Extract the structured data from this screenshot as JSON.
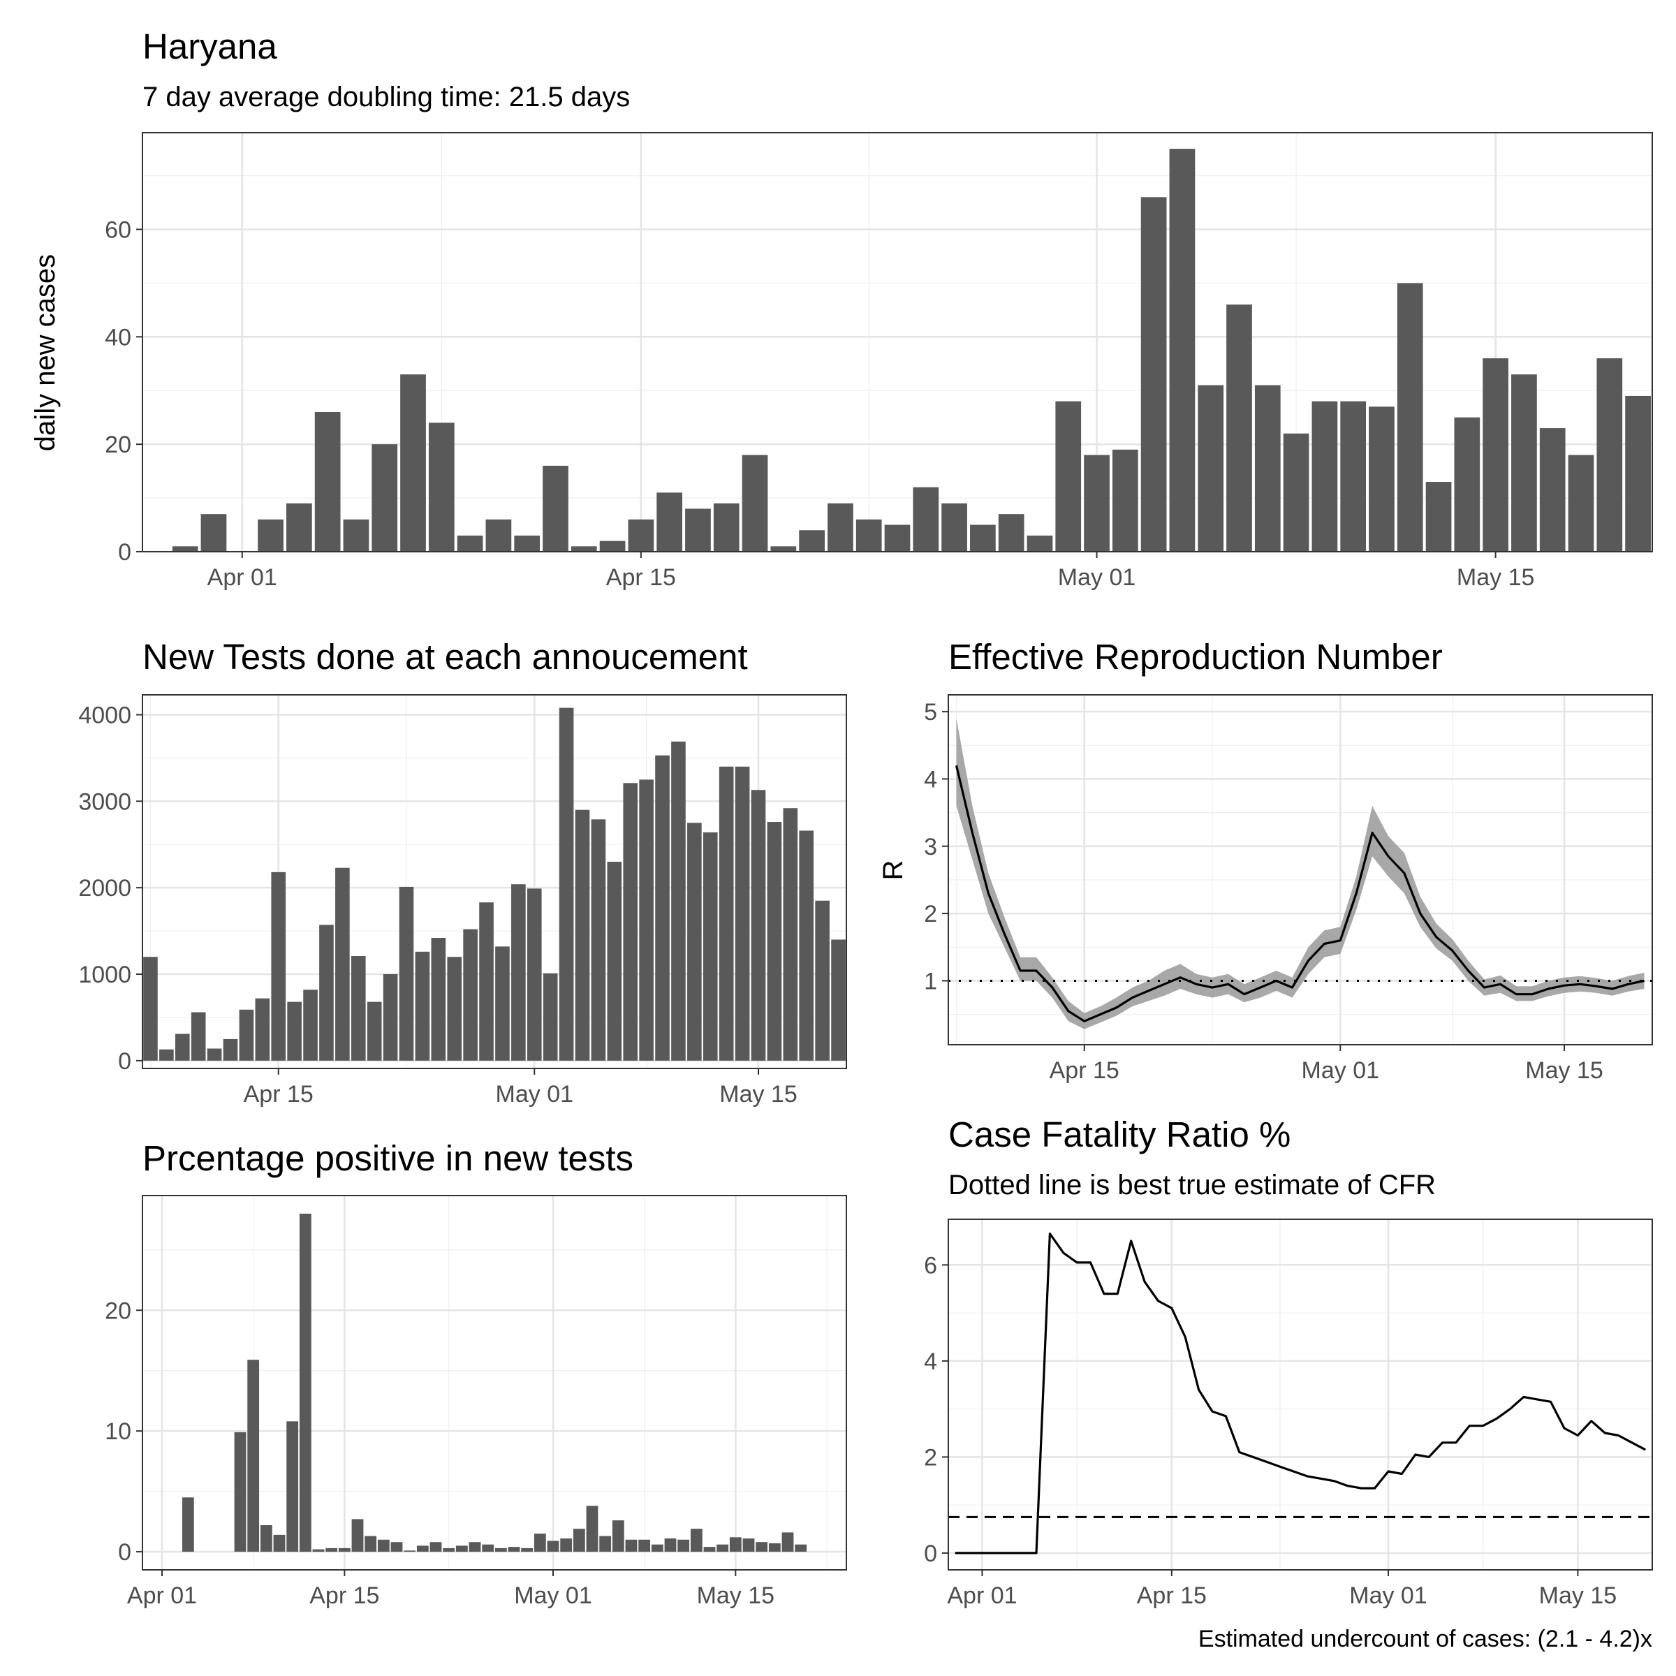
{
  "charts": {
    "cases": {
      "title": "Haryana",
      "subtitle": "7 day average doubling time: 21.5 days",
      "ylabel": "daily new cases"
    },
    "tests": {
      "title": "New Tests done at each annoucement"
    },
    "rt": {
      "title": "Effective Reproduction Number",
      "ylabel": "R"
    },
    "positivity": {
      "title": "Prcentage positive in new tests"
    },
    "cfr": {
      "title": "Case Fatality Ratio %",
      "subtitle": "Dotted line is best true estimate of CFR",
      "caption": "Estimated undercount of cases: (2.1 - 4.2)x"
    }
  },
  "chart_data": [
    {
      "id": "cases",
      "type": "bar",
      "title": "Haryana",
      "subtitle": "7 day average doubling time: 21.5 days",
      "xlabel": "",
      "ylabel": "daily new cases",
      "x_start": "2020-03-29",
      "x_end": "2020-05-20",
      "x": [
        "2020-03-30",
        "2020-03-31",
        "2020-04-01",
        "2020-04-02",
        "2020-04-03",
        "2020-04-04",
        "2020-04-05",
        "2020-04-06",
        "2020-04-07",
        "2020-04-08",
        "2020-04-09",
        "2020-04-10",
        "2020-04-11",
        "2020-04-12",
        "2020-04-13",
        "2020-04-14",
        "2020-04-15",
        "2020-04-16",
        "2020-04-17",
        "2020-04-18",
        "2020-04-19",
        "2020-04-20",
        "2020-04-21",
        "2020-04-22",
        "2020-04-23",
        "2020-04-24",
        "2020-04-25",
        "2020-04-26",
        "2020-04-27",
        "2020-04-28",
        "2020-04-29",
        "2020-04-30",
        "2020-05-01",
        "2020-05-02",
        "2020-05-03",
        "2020-05-04",
        "2020-05-05",
        "2020-05-06",
        "2020-05-07",
        "2020-05-08",
        "2020-05-09",
        "2020-05-10",
        "2020-05-11",
        "2020-05-12",
        "2020-05-13",
        "2020-05-14",
        "2020-05-15",
        "2020-05-16",
        "2020-05-17",
        "2020-05-18",
        "2020-05-19",
        "2020-05-20"
      ],
      "values": [
        1,
        7,
        0,
        6,
        9,
        26,
        6,
        20,
        33,
        24,
        3,
        6,
        3,
        16,
        1,
        2,
        6,
        11,
        8,
        9,
        18,
        1,
        4,
        9,
        6,
        5,
        12,
        9,
        5,
        7,
        3,
        28,
        18,
        19,
        66,
        75,
        31,
        46,
        31,
        22,
        28,
        28,
        27,
        50,
        13,
        25,
        36,
        33,
        23,
        18,
        36,
        29
      ],
      "ylim": [
        0,
        78
      ],
      "yticks": [
        0,
        20,
        40,
        60
      ],
      "xticks": [
        {
          "x": "2020-04-01",
          "label": "Apr 01"
        },
        {
          "x": "2020-04-15",
          "label": "Apr 15"
        },
        {
          "x": "2020-05-01",
          "label": "May 01"
        },
        {
          "x": "2020-05-15",
          "label": "May 15"
        }
      ],
      "grid": true
    },
    {
      "id": "tests",
      "type": "bar",
      "title": "New Tests done at each annoucement",
      "xlabel": "",
      "ylabel": "",
      "x_start": "2020-04-07",
      "x_end": "2020-05-20",
      "x": [
        "2020-04-07",
        "2020-04-08",
        "2020-04-09",
        "2020-04-10",
        "2020-04-11",
        "2020-04-12",
        "2020-04-13",
        "2020-04-14",
        "2020-04-15",
        "2020-04-16",
        "2020-04-17",
        "2020-04-18",
        "2020-04-19",
        "2020-04-20",
        "2020-04-21",
        "2020-04-22",
        "2020-04-23",
        "2020-04-24",
        "2020-04-25",
        "2020-04-26",
        "2020-04-27",
        "2020-04-28",
        "2020-04-29",
        "2020-04-30",
        "2020-05-01",
        "2020-05-02",
        "2020-05-03",
        "2020-05-04",
        "2020-05-05",
        "2020-05-06",
        "2020-05-07",
        "2020-05-08",
        "2020-05-09",
        "2020-05-10",
        "2020-05-11",
        "2020-05-12",
        "2020-05-13",
        "2020-05-14",
        "2020-05-15",
        "2020-05-16",
        "2020-05-17",
        "2020-05-18",
        "2020-05-19",
        "2020-05-20"
      ],
      "values": [
        1200,
        130,
        310,
        560,
        140,
        250,
        590,
        720,
        2180,
        680,
        820,
        1570,
        2230,
        1210,
        680,
        1000,
        2010,
        1260,
        1420,
        1200,
        1520,
        1830,
        1320,
        2040,
        1990,
        1010,
        4080,
        2900,
        2790,
        2300,
        3210,
        3250,
        3530,
        3690,
        2750,
        2640,
        3400,
        3400,
        3130,
        2760,
        2920,
        2660,
        1850,
        1400
      ],
      "ylim": [
        -90,
        4230
      ],
      "yticks": [
        0,
        1000,
        2000,
        3000,
        4000
      ],
      "xticks": [
        {
          "x": "2020-04-15",
          "label": "Apr 15"
        },
        {
          "x": "2020-05-01",
          "label": "May 01"
        },
        {
          "x": "2020-05-15",
          "label": "May 15"
        }
      ],
      "grid": true
    },
    {
      "id": "rt",
      "type": "line",
      "title": "Effective Reproduction Number",
      "xlabel": "",
      "ylabel": "R",
      "x_start": "2020-04-07",
      "x_end": "2020-05-20",
      "x": [
        "2020-04-07",
        "2020-04-08",
        "2020-04-09",
        "2020-04-10",
        "2020-04-11",
        "2020-04-12",
        "2020-04-13",
        "2020-04-14",
        "2020-04-15",
        "2020-04-16",
        "2020-04-17",
        "2020-04-18",
        "2020-04-19",
        "2020-04-20",
        "2020-04-21",
        "2020-04-22",
        "2020-04-23",
        "2020-04-24",
        "2020-04-25",
        "2020-04-26",
        "2020-04-27",
        "2020-04-28",
        "2020-04-29",
        "2020-04-30",
        "2020-05-01",
        "2020-05-02",
        "2020-05-03",
        "2020-05-04",
        "2020-05-05",
        "2020-05-06",
        "2020-05-07",
        "2020-05-08",
        "2020-05-09",
        "2020-05-10",
        "2020-05-11",
        "2020-05-12",
        "2020-05-13",
        "2020-05-14",
        "2020-05-15",
        "2020-05-16",
        "2020-05-17",
        "2020-05-18",
        "2020-05-19",
        "2020-05-20"
      ],
      "values": [
        4.2,
        3.2,
        2.3,
        1.7,
        1.15,
        1.15,
        0.9,
        0.55,
        0.4,
        0.5,
        0.6,
        0.75,
        0.85,
        0.95,
        1.05,
        0.95,
        0.9,
        0.95,
        0.8,
        0.9,
        1.0,
        0.9,
        1.3,
        1.55,
        1.6,
        2.3,
        3.2,
        2.85,
        2.6,
        2.0,
        1.65,
        1.45,
        1.15,
        0.9,
        0.95,
        0.8,
        0.8,
        0.88,
        0.93,
        0.95,
        0.92,
        0.88,
        0.95,
        1.0
      ],
      "lower": [
        3.6,
        2.8,
        2.0,
        1.5,
        1.0,
        1.0,
        0.75,
        0.4,
        0.28,
        0.38,
        0.48,
        0.62,
        0.7,
        0.78,
        0.88,
        0.8,
        0.75,
        0.8,
        0.68,
        0.75,
        0.85,
        0.75,
        1.1,
        1.35,
        1.4,
        2.05,
        2.85,
        2.55,
        2.3,
        1.8,
        1.48,
        1.3,
        1.0,
        0.78,
        0.82,
        0.7,
        0.7,
        0.77,
        0.82,
        0.84,
        0.82,
        0.78,
        0.84,
        0.88
      ],
      "upper": [
        4.9,
        3.6,
        2.6,
        1.95,
        1.35,
        1.35,
        1.05,
        0.7,
        0.52,
        0.62,
        0.75,
        0.9,
        1.0,
        1.15,
        1.25,
        1.1,
        1.05,
        1.1,
        0.95,
        1.05,
        1.15,
        1.05,
        1.5,
        1.75,
        1.8,
        2.55,
        3.6,
        3.15,
        2.9,
        2.25,
        1.85,
        1.62,
        1.3,
        1.02,
        1.08,
        0.92,
        0.92,
        1.0,
        1.05,
        1.07,
        1.04,
        1.0,
        1.07,
        1.12
      ],
      "reference_line": 1,
      "ylim": [
        0.05,
        5.25
      ],
      "yticks": [
        1,
        2,
        3,
        4,
        5
      ],
      "xticks": [
        {
          "x": "2020-04-15",
          "label": "Apr 15"
        },
        {
          "x": "2020-05-01",
          "label": "May 01"
        },
        {
          "x": "2020-05-15",
          "label": "May 15"
        }
      ],
      "grid": true
    },
    {
      "id": "positivity",
      "type": "bar",
      "title": "Prcentage positive in new tests",
      "xlabel": "",
      "ylabel": "",
      "x_start": "2020-03-31",
      "x_end": "2020-05-23",
      "x": [
        "2020-04-03",
        "2020-04-07",
        "2020-04-08",
        "2020-04-09",
        "2020-04-10",
        "2020-04-11",
        "2020-04-12",
        "2020-04-13",
        "2020-04-14",
        "2020-04-15",
        "2020-04-16",
        "2020-04-17",
        "2020-04-18",
        "2020-04-19",
        "2020-04-20",
        "2020-04-21",
        "2020-04-22",
        "2020-04-23",
        "2020-04-24",
        "2020-04-25",
        "2020-04-26",
        "2020-04-27",
        "2020-04-28",
        "2020-04-29",
        "2020-04-30",
        "2020-05-01",
        "2020-05-02",
        "2020-05-03",
        "2020-05-04",
        "2020-05-05",
        "2020-05-06",
        "2020-05-07",
        "2020-05-08",
        "2020-05-09",
        "2020-05-10",
        "2020-05-11",
        "2020-05-12",
        "2020-05-13",
        "2020-05-14",
        "2020-05-15",
        "2020-05-16",
        "2020-05-17",
        "2020-05-18",
        "2020-05-19",
        "2020-05-20"
      ],
      "values": [
        4.5,
        9.9,
        15.9,
        2.2,
        1.4,
        10.8,
        28.0,
        0.2,
        0.3,
        0.3,
        2.7,
        1.3,
        1.0,
        0.8,
        0.1,
        0.5,
        0.8,
        0.3,
        0.5,
        0.8,
        0.6,
        0.3,
        0.4,
        0.3,
        1.5,
        0.9,
        1.1,
        1.9,
        3.8,
        1.3,
        2.6,
        1.0,
        1.0,
        0.6,
        1.1,
        1.0,
        1.9,
        0.4,
        0.6,
        1.2,
        1.1,
        0.8,
        0.7,
        1.6,
        0.6
      ],
      "ylim": [
        -1.5,
        29.5
      ],
      "yticks": [
        0,
        10,
        20
      ],
      "xticks": [
        {
          "x": "2020-04-01",
          "label": "Apr 01"
        },
        {
          "x": "2020-04-15",
          "label": "Apr 15"
        },
        {
          "x": "2020-05-01",
          "label": "May 01"
        },
        {
          "x": "2020-05-15",
          "label": "May 15"
        }
      ],
      "grid": true
    },
    {
      "id": "cfr",
      "type": "line",
      "title": "Case Fatality Ratio %",
      "subtitle": "Dotted line is best true estimate of CFR",
      "xlabel": "",
      "ylabel": "",
      "x_start": "2020-03-30",
      "x_end": "2020-05-20",
      "x": [
        "2020-03-30",
        "2020-03-31",
        "2020-04-01",
        "2020-04-02",
        "2020-04-03",
        "2020-04-04",
        "2020-04-05",
        "2020-04-06",
        "2020-04-07",
        "2020-04-08",
        "2020-04-09",
        "2020-04-10",
        "2020-04-11",
        "2020-04-12",
        "2020-04-13",
        "2020-04-14",
        "2020-04-15",
        "2020-04-16",
        "2020-04-17",
        "2020-04-18",
        "2020-04-19",
        "2020-04-20",
        "2020-04-21",
        "2020-04-22",
        "2020-04-23",
        "2020-04-24",
        "2020-04-25",
        "2020-04-26",
        "2020-04-27",
        "2020-04-28",
        "2020-04-29",
        "2020-04-30",
        "2020-05-01",
        "2020-05-02",
        "2020-05-03",
        "2020-05-04",
        "2020-05-05",
        "2020-05-06",
        "2020-05-07",
        "2020-05-08",
        "2020-05-09",
        "2020-05-10",
        "2020-05-11",
        "2020-05-12",
        "2020-05-13",
        "2020-05-14",
        "2020-05-15",
        "2020-05-16",
        "2020-05-17",
        "2020-05-18",
        "2020-05-19",
        "2020-05-20"
      ],
      "values": [
        0,
        0,
        0,
        0,
        0,
        0,
        0,
        6.65,
        6.25,
        6.05,
        6.05,
        5.4,
        5.4,
        6.5,
        5.65,
        5.25,
        5.1,
        4.5,
        3.4,
        2.95,
        2.85,
        2.1,
        2.0,
        1.9,
        1.8,
        1.7,
        1.6,
        1.55,
        1.5,
        1.4,
        1.35,
        1.35,
        1.7,
        1.65,
        2.05,
        2.0,
        2.3,
        2.3,
        2.65,
        2.65,
        2.8,
        3.0,
        3.25,
        3.2,
        3.15,
        2.6,
        2.45,
        2.75,
        2.5,
        2.45,
        2.3,
        2.15
      ],
      "reference_line": 0.75,
      "ylim": [
        -0.35,
        6.95
      ],
      "yticks": [
        0,
        2,
        4,
        6
      ],
      "xticks": [
        {
          "x": "2020-04-01",
          "label": "Apr 01"
        },
        {
          "x": "2020-04-15",
          "label": "Apr 15"
        },
        {
          "x": "2020-05-01",
          "label": "May 01"
        },
        {
          "x": "2020-05-15",
          "label": "May 15"
        }
      ],
      "caption": "Estimated undercount of cases: (2.1 - 4.2)x",
      "grid": true
    }
  ]
}
